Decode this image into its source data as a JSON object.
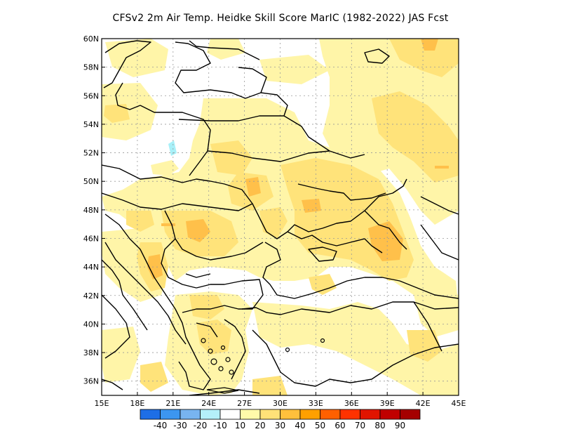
{
  "title": "CFSv2  2m Air Temp. Heidke Skill Score MarIC (1982-2022) JAS Fcst",
  "colors": {
    "background": "#ffffff",
    "land_low": "#fff5a8",
    "land_mid": "#ffe37a",
    "land_high": "#ffc04a",
    "negative": "#a8f0f8",
    "border": "#000000",
    "grid": "#999999"
  },
  "axes": {
    "lon_min": 15,
    "lon_max": 45,
    "lat_min": 35,
    "lat_max": 60,
    "x_ticks": [
      {
        "lon": 15,
        "label": "15E"
      },
      {
        "lon": 18,
        "label": "18E"
      },
      {
        "lon": 21,
        "label": "21E"
      },
      {
        "lon": 24,
        "label": "24E"
      },
      {
        "lon": 27,
        "label": "27E"
      },
      {
        "lon": 30,
        "label": "30E"
      },
      {
        "lon": 33,
        "label": "33E"
      },
      {
        "lon": 36,
        "label": "36E"
      },
      {
        "lon": 39,
        "label": "39E"
      },
      {
        "lon": 42,
        "label": "42E"
      },
      {
        "lon": 45,
        "label": "45E"
      }
    ],
    "y_ticks": [
      {
        "lat": 36,
        "label": "36N"
      },
      {
        "lat": 38,
        "label": "38N"
      },
      {
        "lat": 40,
        "label": "40N"
      },
      {
        "lat": 42,
        "label": "42N"
      },
      {
        "lat": 44,
        "label": "44N"
      },
      {
        "lat": 46,
        "label": "46N"
      },
      {
        "lat": 48,
        "label": "48N"
      },
      {
        "lat": 50,
        "label": "50N"
      },
      {
        "lat": 52,
        "label": "52N"
      },
      {
        "lat": 54,
        "label": "54N"
      },
      {
        "lat": 56,
        "label": "56N"
      },
      {
        "lat": 58,
        "label": "58N"
      },
      {
        "lat": 60,
        "label": "60N"
      }
    ]
  },
  "colorbar": {
    "colors": [
      "#1e6ee6",
      "#3c96f0",
      "#78b4f0",
      "#b4f0fa",
      "#ffffff",
      "#fffaaa",
      "#ffe178",
      "#ffc03c",
      "#ffa000",
      "#ff6000",
      "#ff3200",
      "#e11400",
      "#c00000",
      "#a50000"
    ],
    "labels": [
      "-40",
      "-30",
      "-20",
      "-10",
      "10",
      "20",
      "30",
      "40",
      "50",
      "60",
      "70",
      "80",
      "90"
    ]
  }
}
